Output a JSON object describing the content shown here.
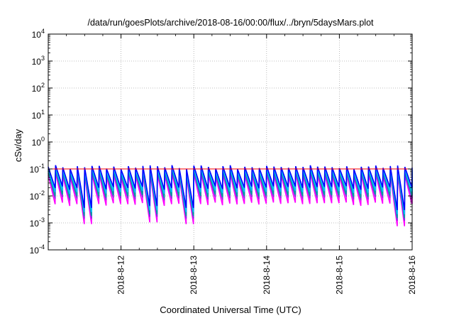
{
  "chart_data": {
    "type": "line",
    "title": "/data/run/goesPlots/archive/2018-08-16/00:00/flux/../bryn/5daysMars.plot",
    "xlabel": "Coordinated Universal Time (UTC)",
    "ylabel": "cSv/day",
    "y_scale": "log",
    "ylim": [
      0.0001,
      10000
    ],
    "xlim": [
      "2018-08-11 00:00",
      "2018-08-16 00:00"
    ],
    "grid": true,
    "legend": "none",
    "y_ticks": [
      {
        "base": "10",
        "exp": "-4"
      },
      {
        "base": "10",
        "exp": "-3"
      },
      {
        "base": "10",
        "exp": "-2"
      },
      {
        "base": "10",
        "exp": "-1"
      },
      {
        "base": "10",
        "exp": "0"
      },
      {
        "base": "10",
        "exp": "1"
      },
      {
        "base": "10",
        "exp": "2"
      },
      {
        "base": "10",
        "exp": "3"
      },
      {
        "base": "10",
        "exp": "4"
      }
    ],
    "x_ticks": [
      "2018-8-12",
      "2018-8-13",
      "2018-8-14",
      "2018-8-15",
      "2018-8-16"
    ],
    "reference_line": {
      "value": 0.1,
      "color": "#ff0000"
    },
    "sawtooth": {
      "period_hours": 2.4,
      "peak_range": [
        0.06,
        0.13
      ],
      "trough_range": [
        0.003,
        0.02
      ],
      "dips": [
        {
          "time": "2018-08-11 12:00",
          "value": 0.003
        },
        {
          "time": "2018-08-12 09:36",
          "value": 0.0035
        },
        {
          "time": "2018-08-12 21:36",
          "value": 0.003
        },
        {
          "time": "2018-08-15 20:24",
          "value": 0.0025
        }
      ]
    },
    "series": [
      {
        "color": "#0000ff",
        "peak": 0.12,
        "trough": 0.02
      },
      {
        "color": "#00bfff",
        "peak": 0.1,
        "trough": 0.014
      },
      {
        "color": "#00a0a0",
        "peak": 0.085,
        "trough": 0.01
      },
      {
        "color": "#8a2be2",
        "peak": 0.07,
        "trough": 0.008
      },
      {
        "color": "#ff00ff",
        "peak": 0.06,
        "trough": 0.005
      }
    ]
  }
}
